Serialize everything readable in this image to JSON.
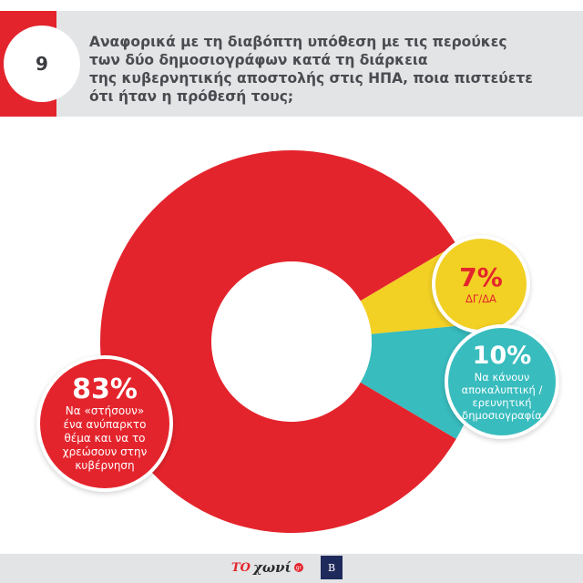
{
  "header": {
    "number": "9",
    "question_lines": [
      "Αναφορικά με τη διαβόπτη υπόθεση με τις περούκες",
      "των δύο δημοσιογράφων κατά τη διάρκεια",
      "της κυβερνητικής αποστολής στις ΗΠΑ, ποια πιστεύετε",
      "ότι ήταν η πρόθεσή τους;"
    ]
  },
  "chart_data": {
    "type": "pie",
    "donut": true,
    "slices": [
      {
        "label": "Να «στήσουν» ένα ανύπαρκτο θέμα και να το χρεώσουν στην κυβέρνηση",
        "value": 83,
        "display": "83%",
        "color": "#e4242c"
      },
      {
        "label": "ΔΓ/ΔΑ",
        "value": 7,
        "display": "7%",
        "color": "#f2d024"
      },
      {
        "label": "Να κάνουν αποκαλυπτική / ερευνητική δημοσιογραφία",
        "value": 10,
        "display": "10%",
        "color": "#38bcbe"
      }
    ]
  },
  "callouts": {
    "red": {
      "pct": "83%",
      "lines": [
        "Να «στήσουν»",
        "ένα ανύπαρκτο",
        "θέμα και να το",
        "χρεώσουν στην",
        "κυβέρνηση"
      ]
    },
    "yellow": {
      "pct": "7%",
      "lines": [
        "ΔΓ/ΔΑ"
      ]
    },
    "teal": {
      "pct": "10%",
      "lines": [
        "Να κάνουν",
        "αποκαλυπτική /",
        "ερευνητική",
        "δημοσιογραφία"
      ]
    }
  },
  "footer": {
    "logo1_mark": "ΤΟ",
    "logo1_text": "χωνί",
    "logo1_badge": "gr",
    "logo2_text": "Β"
  },
  "colors": {
    "red": "#e4242c",
    "yellow": "#f2d024",
    "teal": "#38bcbe",
    "header_gray": "#e3e4e6"
  }
}
